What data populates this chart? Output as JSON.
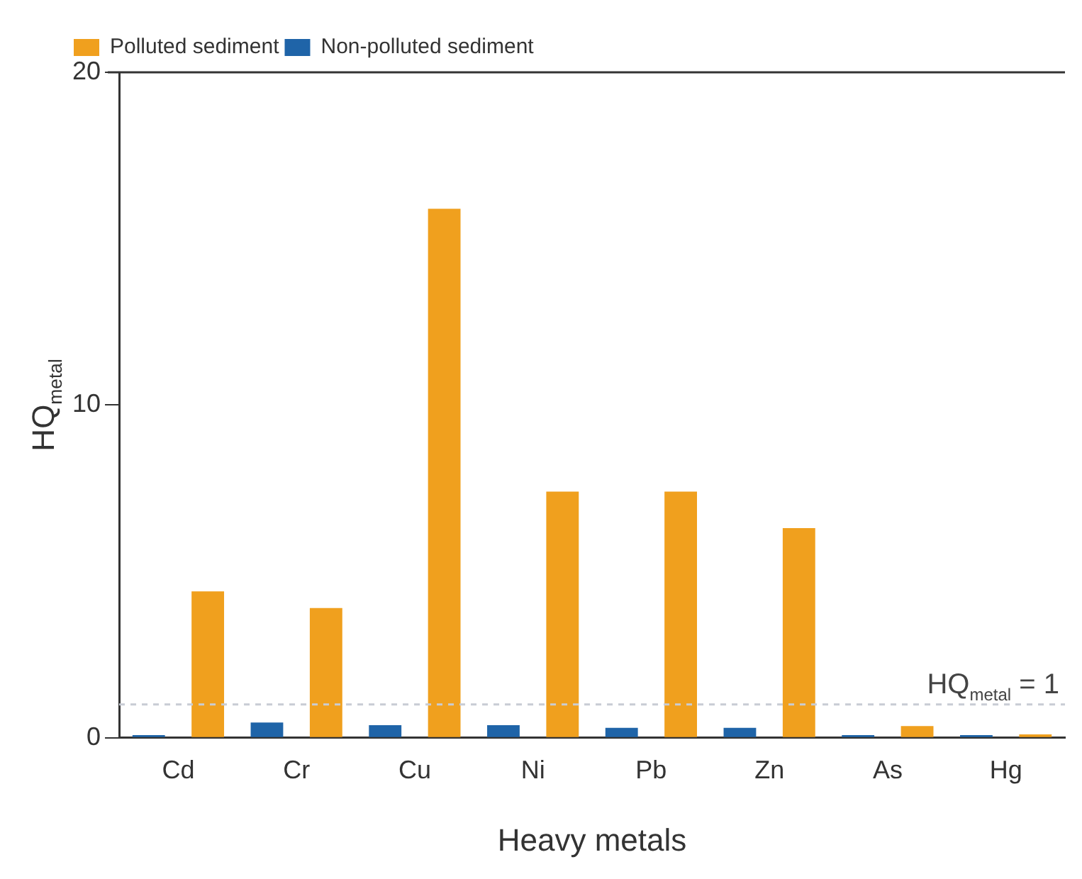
{
  "chart_data": {
    "type": "bar",
    "xlabel": "Heavy metals",
    "ylabel": "HQ$_{metal}$",
    "categories": [
      "Cd",
      "Cr",
      "Cu",
      "Ni",
      "Pb",
      "Zn",
      "As",
      "Hg"
    ],
    "series": [
      {
        "name": "Non-polluted sediment",
        "color": "#1f64a8",
        "values": [
          0.08,
          0.46,
          0.38,
          0.38,
          0.3,
          0.3,
          0.08,
          0.08
        ]
      },
      {
        "name": "Polluted sediment",
        "color": "#f0a01e",
        "values": [
          4.4,
          3.9,
          15.9,
          7.4,
          7.4,
          6.3,
          0.35,
          0.1
        ]
      }
    ],
    "ylim": [
      0,
      20
    ],
    "yticks": [
      0,
      10,
      20
    ],
    "grid": false,
    "legend": "top left",
    "ref_lines": [
      {
        "axis": "y",
        "value": 1,
        "label": "HQ$_{metal}$ = 1",
        "color": "#c8ccd4",
        "line_style": "dashed"
      }
    ]
  }
}
